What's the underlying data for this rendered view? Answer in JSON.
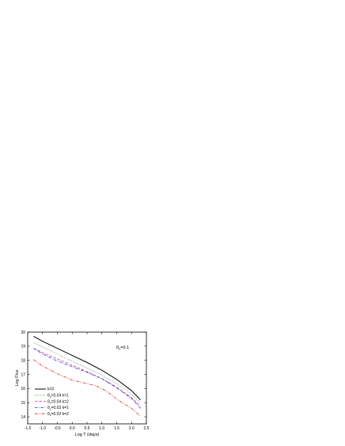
{
  "chart_data": {
    "type": "line",
    "xlabel": "Log T (days)",
    "ylabel": "Log Flux",
    "xlim": [
      -1.5,
      2.5
    ],
    "ylim": [
      13.5,
      20.0
    ],
    "xticks": [
      -1.5,
      -1.0,
      -0.5,
      0.0,
      0.5,
      1.0,
      1.5,
      2.0,
      2.5
    ],
    "xtick_labels": [
      "-1.5",
      "-1.0",
      "-0.5",
      "0.0",
      "0.5",
      "1.0",
      "1.5",
      "2.0",
      "2.5"
    ],
    "yticks": [
      14,
      15,
      16,
      17,
      18,
      19,
      20
    ],
    "ytick_labels": [
      "14",
      "15",
      "16",
      "17",
      "18",
      "19",
      "20"
    ],
    "grid": false,
    "legend_position": "bottom-left",
    "annotation": {
      "main": "θ",
      "sub": "0",
      "rest": "=0.1"
    },
    "series": [
      {
        "name": "k=0",
        "color": "#000000",
        "dash": "solid",
        "x": [
          -1.3,
          -1.0,
          -0.5,
          0.0,
          0.5,
          1.0,
          1.5,
          2.0,
          2.3
        ],
        "y": [
          19.7,
          19.35,
          18.85,
          18.35,
          17.85,
          17.3,
          16.65,
          15.85,
          15.2
        ]
      },
      {
        "name": "θ_c=0.04 k=1",
        "label_main": "θ",
        "label_sub": "c",
        "label_rest": "=0.04 k=1",
        "color": "#1a8c1a",
        "dash": "dot",
        "x": [
          -1.3,
          -1.0,
          -0.5,
          0.0,
          0.5,
          1.0,
          1.5,
          2.0,
          2.3
        ],
        "y": [
          19.25,
          18.95,
          18.45,
          17.95,
          17.45,
          16.95,
          16.35,
          15.6,
          15.0
        ]
      },
      {
        "name": "θ_c=0.04 k=2",
        "label_main": "θ",
        "label_sub": "c",
        "label_rest": "=0.04 k=2",
        "color": "#e0309e",
        "dash": "dash",
        "x": [
          -1.3,
          -1.0,
          -0.5,
          0.0,
          0.5,
          1.0,
          1.5,
          2.0,
          2.3
        ],
        "y": [
          18.85,
          18.55,
          18.1,
          17.65,
          17.2,
          16.7,
          16.1,
          15.35,
          14.75
        ]
      },
      {
        "name": "θ_c=0.02 k=1",
        "label_main": "θ",
        "label_sub": "c",
        "label_rest": "=0.02 k=1",
        "color": "#2a3ad0",
        "dash": "dashdot",
        "x": [
          -1.3,
          -1.0,
          -0.5,
          0.0,
          0.5,
          1.0,
          1.5,
          2.0,
          2.3
        ],
        "y": [
          18.85,
          18.45,
          17.95,
          17.55,
          17.15,
          16.7,
          16.05,
          15.3,
          14.6
        ]
      },
      {
        "name": "θ_c=0.02 k=2",
        "label_main": "θ",
        "label_sub": "c",
        "label_rest": "=0.02 k=2",
        "color": "#d82020",
        "dash": "dashdotdot",
        "x": [
          -1.3,
          -1.0,
          -0.5,
          0.0,
          0.5,
          0.8,
          1.0,
          1.3,
          1.5,
          2.0,
          2.3
        ],
        "y": [
          18.05,
          17.6,
          17.05,
          16.6,
          16.35,
          16.2,
          16.0,
          15.6,
          15.25,
          14.6,
          14.05
        ]
      }
    ]
  }
}
